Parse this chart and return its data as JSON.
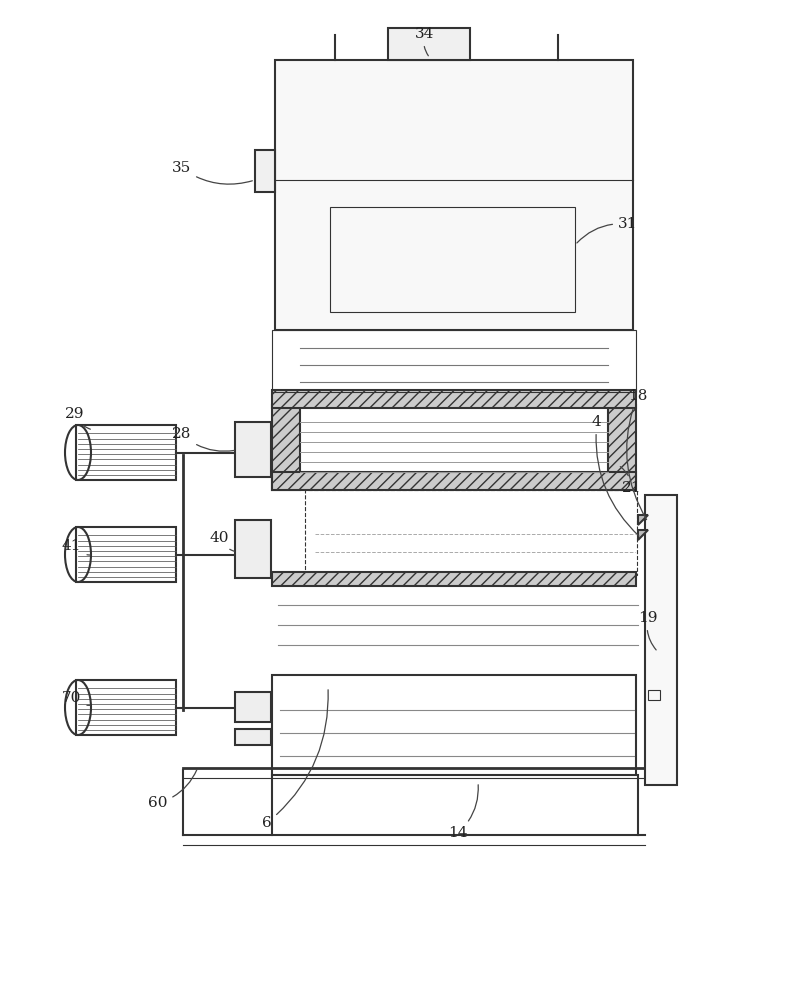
{
  "bg_color": "#ffffff",
  "line_color": "#333333",
  "label_color": "#222222",
  "label_fontsize": 11,
  "labels_info": [
    [
      "34",
      415,
      962,
      430,
      942
    ],
    [
      "35",
      172,
      828,
      255,
      820
    ],
    [
      "31",
      618,
      772,
      575,
      755
    ],
    [
      "29",
      65,
      582,
      93,
      570
    ],
    [
      "28",
      172,
      562,
      237,
      550
    ],
    [
      "21",
      622,
      508,
      618,
      535
    ],
    [
      "40",
      210,
      458,
      237,
      448
    ],
    [
      "41",
      62,
      450,
      93,
      445
    ],
    [
      "18",
      628,
      600,
      648,
      478
    ],
    [
      "4",
      592,
      574,
      641,
      462
    ],
    [
      "70",
      62,
      298,
      93,
      295
    ],
    [
      "19",
      638,
      378,
      658,
      348
    ],
    [
      "60",
      148,
      193,
      198,
      233
    ],
    [
      "6",
      262,
      173,
      328,
      313
    ],
    [
      "14",
      448,
      163,
      478,
      218
    ]
  ]
}
